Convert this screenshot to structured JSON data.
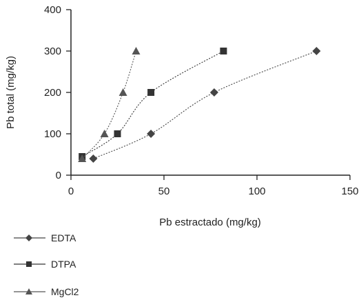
{
  "chart_data": {
    "type": "line",
    "xlabel": "Pb estractado (mg/kg)",
    "ylabel": "Pb total (mg/kg)",
    "xlim": [
      0,
      150
    ],
    "ylim": [
      0,
      400
    ],
    "x_ticks": [
      "0",
      "50",
      "100",
      "150"
    ],
    "y_ticks": [
      "0",
      "100",
      "200",
      "300",
      "400"
    ],
    "grid": false,
    "legend_position": "below-left",
    "series": [
      {
        "name": "EDTA",
        "marker": "diamond",
        "color": "#444444",
        "points": [
          [
            12,
            40
          ],
          [
            43,
            100
          ],
          [
            77,
            200
          ],
          [
            132,
            300
          ]
        ]
      },
      {
        "name": "DTPA",
        "marker": "square",
        "color": "#333333",
        "points": [
          [
            6,
            45
          ],
          [
            25,
            100
          ],
          [
            43,
            200
          ],
          [
            82,
            300
          ]
        ]
      },
      {
        "name": "MgCl2",
        "marker": "triangle",
        "color": "#555555",
        "points": [
          [
            6,
            40
          ],
          [
            18,
            100
          ],
          [
            28,
            200
          ],
          [
            35,
            300
          ]
        ]
      }
    ]
  }
}
